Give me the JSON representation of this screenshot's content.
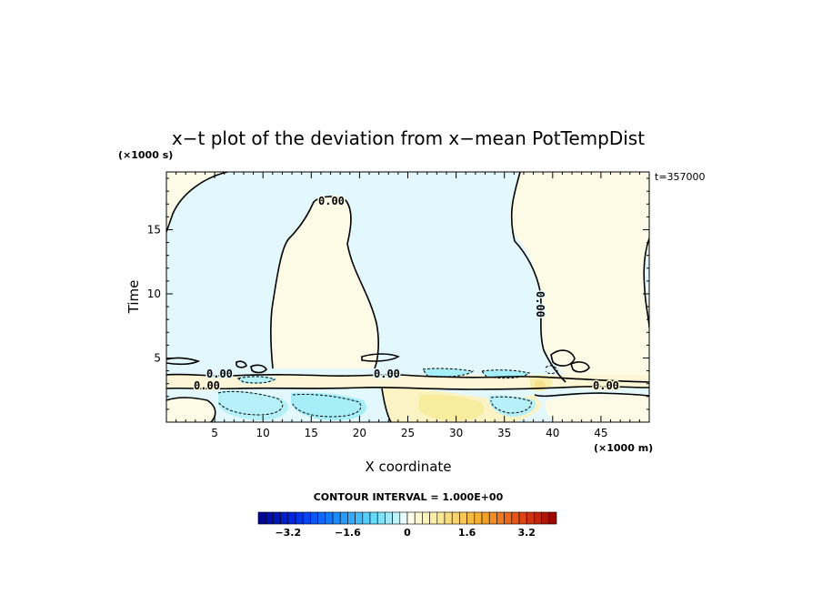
{
  "chart_data": {
    "type": "heatmap",
    "title": "x−t plot of the deviation from x−mean PotTempDist",
    "time_stamp": "t=357000",
    "xlabel": "X coordinate",
    "ylabel": "Time",
    "x_unit": "(×1000 m)",
    "y_unit": "(×1000 s)",
    "xlim": [
      0,
      50
    ],
    "ylim": [
      0,
      19.5
    ],
    "x_ticks": [
      "5",
      "10",
      "15",
      "20",
      "25",
      "30",
      "35",
      "40",
      "45"
    ],
    "y_ticks": [
      "5",
      "10",
      "15"
    ],
    "contour_interval_text": "CONTOUR INTERVAL = 1.000E+00",
    "contour_labels": [
      "0.00",
      "0.00",
      "0.00",
      "0.00",
      "0.00",
      "0.00"
    ],
    "colorbar": {
      "range": [
        -4,
        4
      ],
      "tick_labels": [
        "−3.2",
        "−1.6",
        "0",
        "1.6",
        "3.2"
      ],
      "tick_values": [
        -3.2,
        -1.6,
        0,
        1.6,
        3.2
      ]
    },
    "colors": {
      "negative_fill": "#e2f8fc",
      "negative_strong": "#a6eef8",
      "positive_fill": "#fdfbe6",
      "positive_strong": "#f8ec9e",
      "warm_patch": "#f2b23a",
      "contour": "#000000"
    }
  }
}
